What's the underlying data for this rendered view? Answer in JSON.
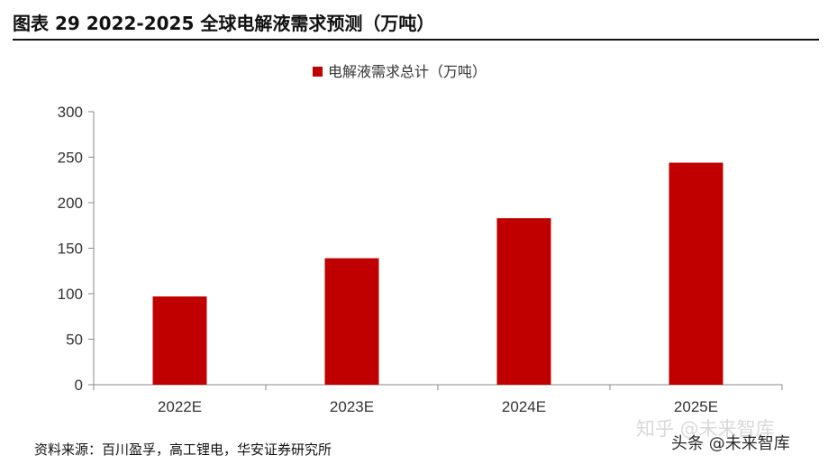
{
  "header": {
    "title": "图表 29 2022-2025 全球电解液需求预测（万吨）"
  },
  "footer": {
    "source": "资料来源：百川盈孚，高工锂电，华安证券研究所",
    "watermark_faint": "知乎 @未来智库",
    "watermark_main": "头条 @未来智库"
  },
  "chart_data": {
    "type": "bar",
    "title": "",
    "xlabel": "",
    "ylabel": "",
    "categories": [
      "2022E",
      "2023E",
      "2024E",
      "2025E"
    ],
    "series": [
      {
        "name": "电解液需求总计（万吨）",
        "values": [
          97,
          139,
          183,
          244
        ]
      }
    ],
    "ylim": [
      0,
      300
    ],
    "yticks": [
      0,
      50,
      100,
      150,
      200,
      250,
      300
    ],
    "grid": false,
    "legend": "top-center",
    "bar_color": "#C00000"
  }
}
